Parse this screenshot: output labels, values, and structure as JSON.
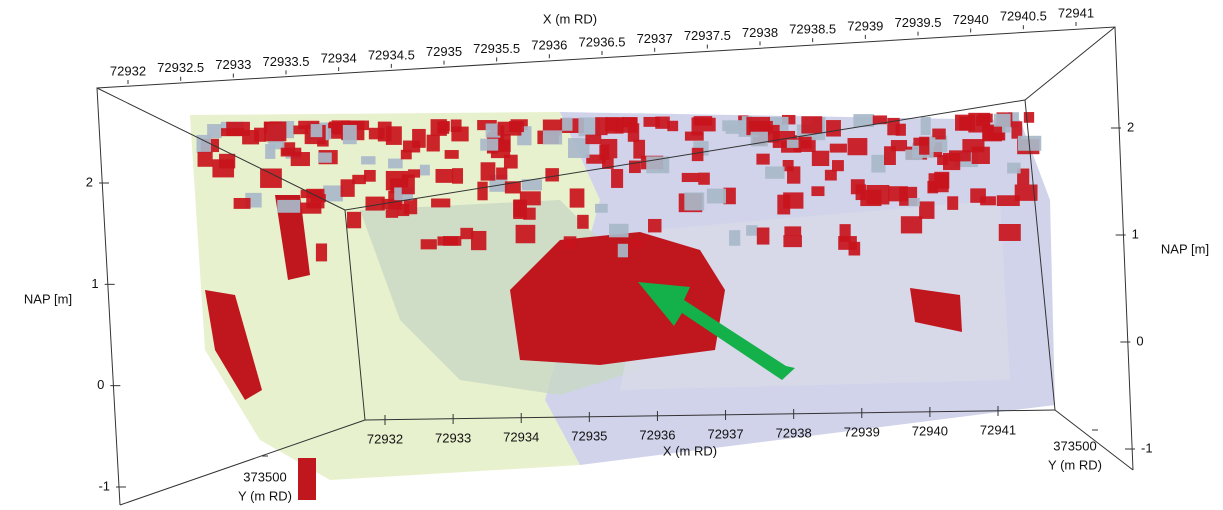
{
  "chart_data": {
    "type": "voxel3d",
    "xlim": [
      72932,
      72941
    ],
    "zlim": [
      -1,
      2
    ],
    "x_top": {
      "label": "X (m RD)",
      "ticks": [
        72932,
        72932.5,
        72933,
        72933.5,
        72934,
        72934.5,
        72935,
        72935.5,
        72936,
        72936.5,
        72937,
        72937.5,
        72938,
        72938.5,
        72939,
        72939.5,
        72940,
        72940.5,
        72941
      ]
    },
    "x_bottom": {
      "label": "X (m RD)",
      "ticks": [
        72932,
        72933,
        72934,
        72935,
        72936,
        72937,
        72938,
        72939,
        72940,
        72941
      ]
    },
    "y_left": {
      "label": "Y (m RD)",
      "ticks": [
        373500
      ]
    },
    "y_right": {
      "label": "Y (m RD)",
      "ticks": [
        373500
      ]
    },
    "z_left": {
      "label": "NAP [m]",
      "ticks": [
        -1,
        0,
        1,
        2
      ]
    },
    "z_right": {
      "label": "NAP [m]",
      "ticks": [
        -1,
        0,
        1,
        2
      ]
    }
  }
}
